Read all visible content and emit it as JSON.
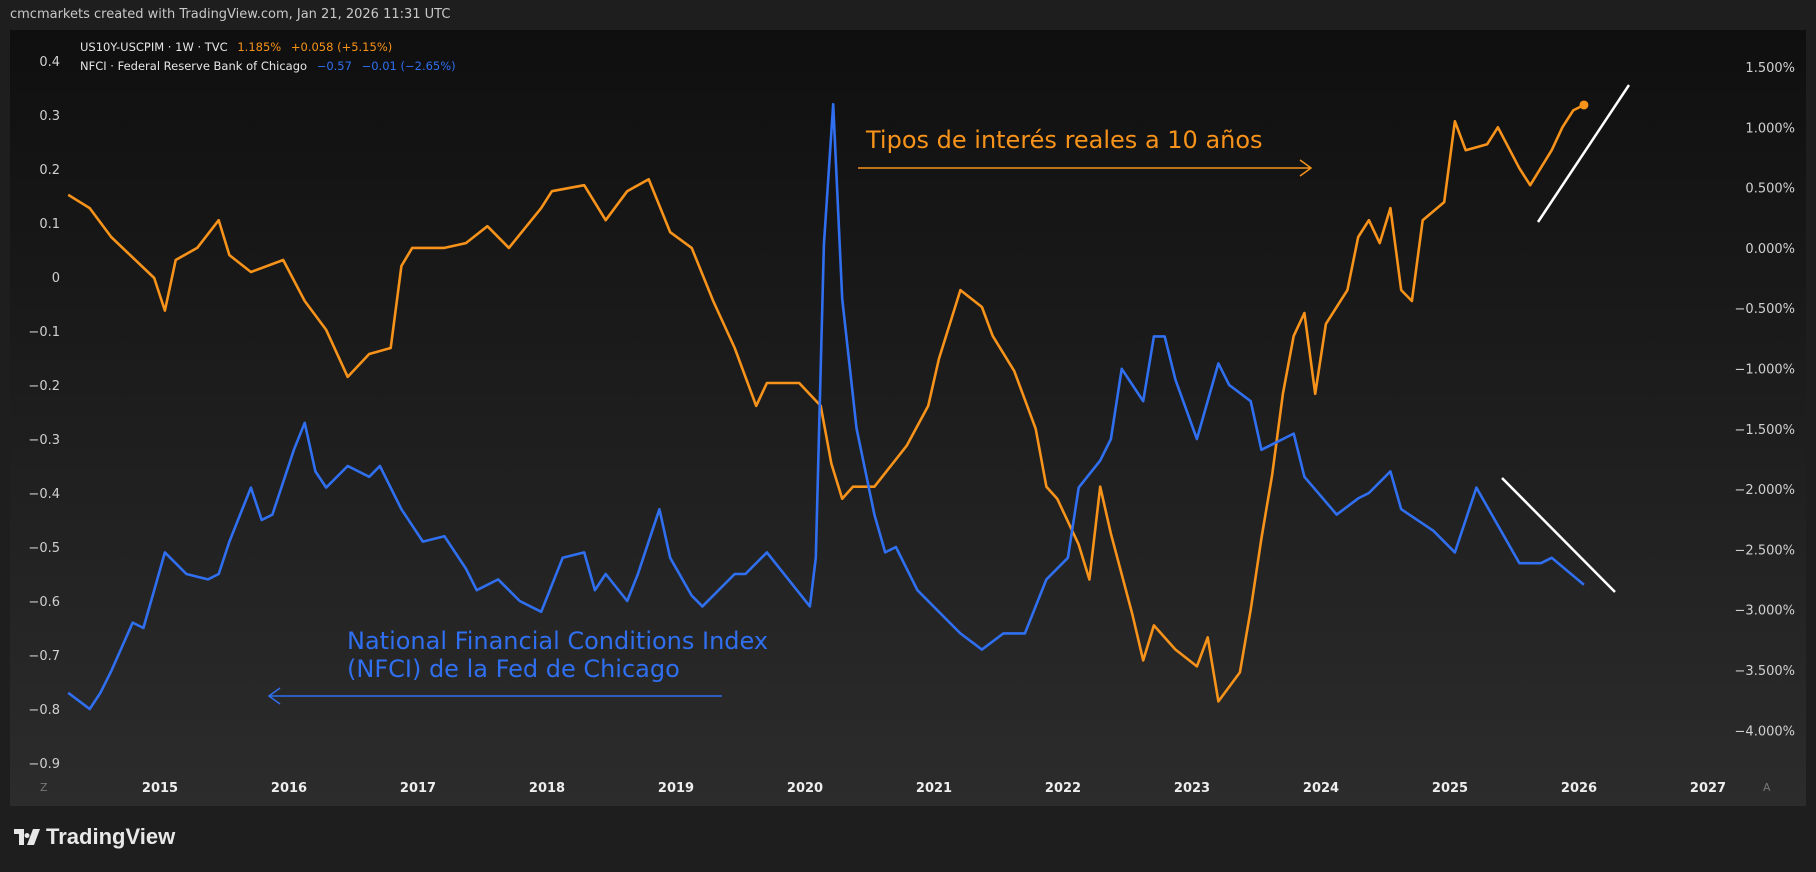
{
  "header": {
    "attribution": "cmcmarkets created with TradingView.com, Jan 21, 2026 11:31 UTC"
  },
  "legend": [
    {
      "name": "US10Y-USCPIM · 1W · TVC",
      "value": "1.185%",
      "change": "+0.058 (+5.15%)",
      "color": "#f7931a"
    },
    {
      "name": "NFCI · Federal Reserve Bank of Chicago",
      "value": "−0.57",
      "change": "−0.01 (−2.65%)",
      "color": "#2f6ff0"
    }
  ],
  "footer": {
    "logo_text": "TradingView"
  },
  "axis_corner": {
    "left": "Z",
    "right": "A"
  },
  "colors": {
    "background_top": "#0f0f0f",
    "background_bottom": "#2c2c2c",
    "orange": "#f7931a",
    "blue": "#2f6ff0",
    "trendline": "#ffffff"
  },
  "chart_data": {
    "type": "line",
    "title": "",
    "x_ticks": [
      "2015",
      "2016",
      "2017",
      "2018",
      "2019",
      "2020",
      "2021",
      "2022",
      "2023",
      "2024",
      "2025",
      "2026",
      "2027"
    ],
    "left_axis": {
      "ticks": [
        "0.4",
        "0.3",
        "0.2",
        "0.1",
        "0",
        "−0.1",
        "−0.2",
        "−0.3",
        "−0.4",
        "−0.5",
        "−0.6",
        "−0.7",
        "−0.8",
        "−0.9"
      ],
      "range": [
        -0.9,
        0.4
      ]
    },
    "right_axis": {
      "ticks": [
        "1.500%",
        "1.000%",
        "0.500%",
        "0.000%",
        "−0.500%",
        "−1.000%",
        "−1.500%",
        "−2.000%",
        "−2.500%",
        "−3.000%",
        "−3.500%",
        "−4.000%"
      ],
      "range": [
        -4.0,
        1.5
      ]
    },
    "grid": false,
    "series": [
      {
        "name": "US10Y-USCPIM",
        "axis": "right",
        "color": "#f7931a",
        "points": [
          [
            "2014-04",
            0.44
          ],
          [
            "2014-06",
            0.33
          ],
          [
            "2014-08",
            0.09
          ],
          [
            "2014-12",
            -0.25
          ],
          [
            "2015-01",
            -0.52
          ],
          [
            "2015-02",
            -0.1
          ],
          [
            "2015-04",
            0.0
          ],
          [
            "2015-06",
            0.23
          ],
          [
            "2015-07",
            -0.06
          ],
          [
            "2015-09",
            -0.2
          ],
          [
            "2015-12",
            -0.1
          ],
          [
            "2016-02",
            -0.44
          ],
          [
            "2016-04",
            -0.68
          ],
          [
            "2016-06",
            -1.07
          ],
          [
            "2016-08",
            -0.88
          ],
          [
            "2016-10",
            -0.83
          ],
          [
            "2016-11",
            -0.15
          ],
          [
            "2016-12",
            0.0
          ],
          [
            "2017-03",
            0.0
          ],
          [
            "2017-05",
            0.04
          ],
          [
            "2017-07",
            0.18
          ],
          [
            "2017-09",
            0.0
          ],
          [
            "2017-12",
            0.33
          ],
          [
            "2018-01",
            0.47
          ],
          [
            "2018-04",
            0.52
          ],
          [
            "2018-06",
            0.23
          ],
          [
            "2018-08",
            0.47
          ],
          [
            "2018-10",
            0.57
          ],
          [
            "2018-12",
            0.13
          ],
          [
            "2019-02",
            0.0
          ],
          [
            "2019-04",
            -0.44
          ],
          [
            "2019-06",
            -0.83
          ],
          [
            "2019-08",
            -1.31
          ],
          [
            "2019-09",
            -1.12
          ],
          [
            "2019-12",
            -1.12
          ],
          [
            "2020-02",
            -1.31
          ],
          [
            "2020-03",
            -1.79
          ],
          [
            "2020-04",
            -2.08
          ],
          [
            "2020-05",
            -1.98
          ],
          [
            "2020-07",
            -1.98
          ],
          [
            "2020-10",
            -1.64
          ],
          [
            "2020-12",
            -1.31
          ],
          [
            "2021-01",
            -0.92
          ],
          [
            "2021-03",
            -0.35
          ],
          [
            "2021-05",
            -0.49
          ],
          [
            "2021-06",
            -0.73
          ],
          [
            "2021-08",
            -1.02
          ],
          [
            "2021-10",
            -1.5
          ],
          [
            "2021-11",
            -1.98
          ],
          [
            "2021-12",
            -2.08
          ],
          [
            "2022-02",
            -2.46
          ],
          [
            "2022-03",
            -2.75
          ],
          [
            "2022-04",
            -1.98
          ],
          [
            "2022-05",
            -2.37
          ],
          [
            "2022-07",
            -3.04
          ],
          [
            "2022-08",
            -3.42
          ],
          [
            "2022-09",
            -3.13
          ],
          [
            "2022-11",
            -3.33
          ],
          [
            "2023-01",
            -3.47
          ],
          [
            "2023-02",
            -3.23
          ],
          [
            "2023-03",
            -3.76
          ],
          [
            "2023-05",
            -3.52
          ],
          [
            "2023-06",
            -3.0
          ],
          [
            "2023-07",
            -2.41
          ],
          [
            "2023-08",
            -1.88
          ],
          [
            "2023-09",
            -1.21
          ],
          [
            "2023-10",
            -0.73
          ],
          [
            "2023-11",
            -0.54
          ],
          [
            "2023-12",
            -1.21
          ],
          [
            "2024-01",
            -0.63
          ],
          [
            "2024-03",
            -0.35
          ],
          [
            "2024-04",
            0.09
          ],
          [
            "2024-05",
            0.23
          ],
          [
            "2024-06",
            0.04
          ],
          [
            "2024-07",
            0.33
          ],
          [
            "2024-08",
            -0.35
          ],
          [
            "2024-09",
            -0.44
          ],
          [
            "2024-10",
            0.23
          ],
          [
            "2024-12",
            0.38
          ],
          [
            "2025-01",
            1.05
          ],
          [
            "2025-02",
            0.81
          ],
          [
            "2025-04",
            0.86
          ],
          [
            "2025-05",
            1.0
          ],
          [
            "2025-07",
            0.66
          ],
          [
            "2025-08",
            0.52
          ],
          [
            "2025-10",
            0.81
          ],
          [
            "2025-11",
            1.0
          ],
          [
            "2025-12",
            1.14
          ],
          [
            "2026-01",
            1.185
          ]
        ]
      },
      {
        "name": "NFCI",
        "axis": "left",
        "color": "#2f6ff0",
        "points": [
          [
            "2014-04",
            -0.77
          ],
          [
            "2014-06",
            -0.8
          ],
          [
            "2014-07",
            -0.77
          ],
          [
            "2014-08",
            -0.73
          ],
          [
            "2014-10",
            -0.64
          ],
          [
            "2014-11",
            -0.65
          ],
          [
            "2014-12",
            -0.58
          ],
          [
            "2015-01",
            -0.51
          ],
          [
            "2015-03",
            -0.55
          ],
          [
            "2015-05",
            -0.56
          ],
          [
            "2015-06",
            -0.55
          ],
          [
            "2015-07",
            -0.49
          ],
          [
            "2015-09",
            -0.39
          ],
          [
            "2015-10",
            -0.45
          ],
          [
            "2015-11",
            -0.44
          ],
          [
            "2016-01",
            -0.32
          ],
          [
            "2016-02",
            -0.27
          ],
          [
            "2016-03",
            -0.36
          ],
          [
            "2016-04",
            -0.39
          ],
          [
            "2016-06",
            -0.35
          ],
          [
            "2016-08",
            -0.37
          ],
          [
            "2016-09",
            -0.35
          ],
          [
            "2016-11",
            -0.43
          ],
          [
            "2017-01",
            -0.49
          ],
          [
            "2017-03",
            -0.48
          ],
          [
            "2017-05",
            -0.54
          ],
          [
            "2017-06",
            -0.58
          ],
          [
            "2017-08",
            -0.56
          ],
          [
            "2017-10",
            -0.6
          ],
          [
            "2017-12",
            -0.62
          ],
          [
            "2018-02",
            -0.52
          ],
          [
            "2018-04",
            -0.51
          ],
          [
            "2018-05",
            -0.58
          ],
          [
            "2018-06",
            -0.55
          ],
          [
            "2018-08",
            -0.6
          ],
          [
            "2018-09",
            -0.55
          ],
          [
            "2018-11",
            -0.43
          ],
          [
            "2018-12",
            -0.52
          ],
          [
            "2019-02",
            -0.59
          ],
          [
            "2019-03",
            -0.61
          ],
          [
            "2019-06",
            -0.55
          ],
          [
            "2019-07",
            -0.55
          ],
          [
            "2019-09",
            -0.51
          ],
          [
            "2019-11",
            -0.56
          ],
          [
            "2020-01",
            -0.61
          ],
          [
            "2020-02-01",
            -0.52
          ],
          [
            "2020-02-24",
            0.06
          ],
          [
            "2020-03-20",
            0.32
          ],
          [
            "2020-04-15",
            -0.04
          ],
          [
            "2020-05-25",
            -0.28
          ],
          [
            "2020-07",
            -0.44
          ],
          [
            "2020-08",
            -0.51
          ],
          [
            "2020-09",
            -0.5
          ],
          [
            "2020-11",
            -0.58
          ],
          [
            "2021-01",
            -0.62
          ],
          [
            "2021-03",
            -0.66
          ],
          [
            "2021-05",
            -0.69
          ],
          [
            "2021-07",
            -0.66
          ],
          [
            "2021-09",
            -0.66
          ],
          [
            "2021-11",
            -0.56
          ],
          [
            "2021-12",
            -0.54
          ],
          [
            "2022-01",
            -0.52
          ],
          [
            "2022-02",
            -0.39
          ],
          [
            "2022-04",
            -0.34
          ],
          [
            "2022-05",
            -0.3
          ],
          [
            "2022-06",
            -0.17
          ],
          [
            "2022-08",
            -0.23
          ],
          [
            "2022-09",
            -0.11
          ],
          [
            "2022-10",
            -0.11
          ],
          [
            "2022-11",
            -0.19
          ],
          [
            "2023-01",
            -0.3
          ],
          [
            "2023-03",
            -0.16
          ],
          [
            "2023-04",
            -0.2
          ],
          [
            "2023-06",
            -0.23
          ],
          [
            "2023-07",
            -0.32
          ],
          [
            "2023-10",
            -0.29
          ],
          [
            "2023-11",
            -0.37
          ],
          [
            "2024-02",
            -0.44
          ],
          [
            "2024-04",
            -0.41
          ],
          [
            "2024-05",
            -0.4
          ],
          [
            "2024-07",
            -0.36
          ],
          [
            "2024-08",
            -0.43
          ],
          [
            "2024-11",
            -0.47
          ],
          [
            "2025-01",
            -0.51
          ],
          [
            "2025-03",
            -0.39
          ],
          [
            "2025-05",
            -0.46
          ],
          [
            "2025-07",
            -0.53
          ],
          [
            "2025-09",
            -0.53
          ],
          [
            "2025-10",
            -0.52
          ],
          [
            "2026-01",
            -0.57
          ]
        ]
      }
    ],
    "annotations": [
      {
        "text": "Tipos de interés reales a 10 años",
        "color": "#f7931a",
        "arrow": "right"
      },
      {
        "text": "National Financial Conditions Index",
        "text2": "(NFCI) de la Fed de Chicago",
        "color": "#2f6ff0",
        "arrow": "left"
      }
    ],
    "trendlines": [
      {
        "direction": "up",
        "color": "#ffffff"
      },
      {
        "direction": "down",
        "color": "#ffffff"
      }
    ]
  }
}
